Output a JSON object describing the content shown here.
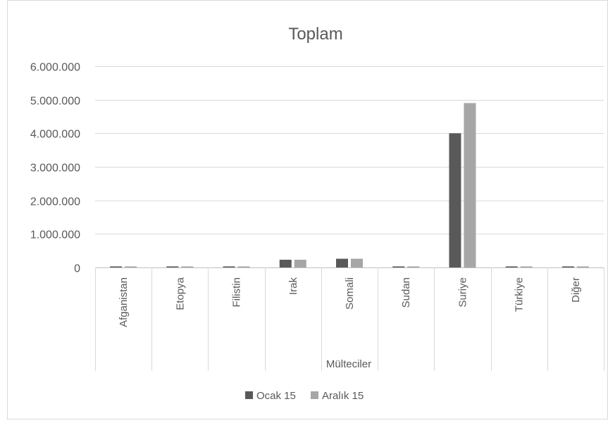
{
  "chart_data": {
    "type": "bar",
    "title": "Toplam",
    "xlabel": "Mülteciler",
    "ylabel": "",
    "categories": [
      "Afganistan",
      "Etopya",
      "Filistin",
      "Irak",
      "Somali",
      "Sudan",
      "Suriye",
      "Türkiye",
      "Diğer"
    ],
    "series": [
      {
        "name": "Ocak 15",
        "color": "#595959",
        "values": [
          20000,
          15000,
          15000,
          230000,
          260000,
          15000,
          4000000,
          15000,
          20000
        ]
      },
      {
        "name": "Aralık 15",
        "color": "#a6a6a6",
        "values": [
          20000,
          15000,
          15000,
          230000,
          260000,
          15000,
          4900000,
          15000,
          20000
        ]
      }
    ],
    "ylim": [
      0,
      6000000
    ],
    "yticks": [
      0,
      1000000,
      2000000,
      3000000,
      4000000,
      5000000,
      6000000
    ],
    "ytick_labels": [
      "0",
      "1.000.000",
      "2.000.000",
      "3.000.000",
      "4.000.000",
      "5.000.000",
      "6.000.000"
    ],
    "grid": true,
    "legend_position": "bottom"
  }
}
